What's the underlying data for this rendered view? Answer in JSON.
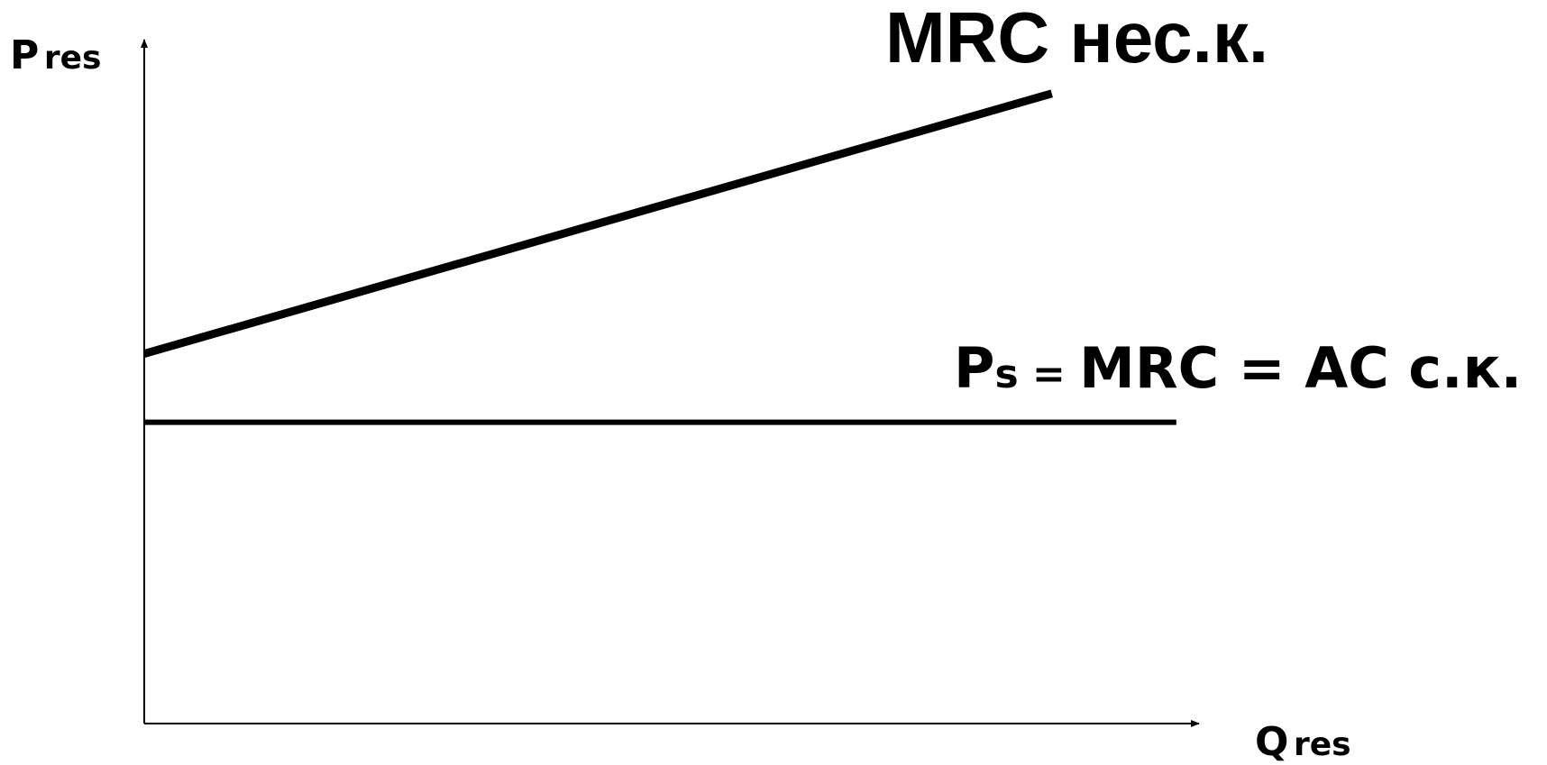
{
  "chart_data": {
    "type": "line",
    "title": "",
    "xlabel": {
      "main": "Q",
      "sub": "res"
    },
    "ylabel": {
      "main": "P",
      "sub": "res"
    },
    "xlim": [
      0,
      10
    ],
    "ylim": [
      0,
      10
    ],
    "grid": false,
    "series": [
      {
        "name": "MRC нес.к.",
        "label_text": "MRC нес.к.",
        "x": [
          0,
          8.46
        ],
        "y": [
          5.4,
          9.2
        ]
      },
      {
        "name": "Ps = MRC = AC с.к.",
        "label_parts": {
          "p": "P",
          "s": "s",
          "eq1": " = ",
          "rest": "MRC = AC с.к."
        },
        "x": [
          0,
          9.62
        ],
        "y": [
          4.4,
          4.4
        ]
      }
    ]
  },
  "colors": {
    "line": "#000000",
    "axis": "#000000",
    "background": "#ffffff"
  }
}
